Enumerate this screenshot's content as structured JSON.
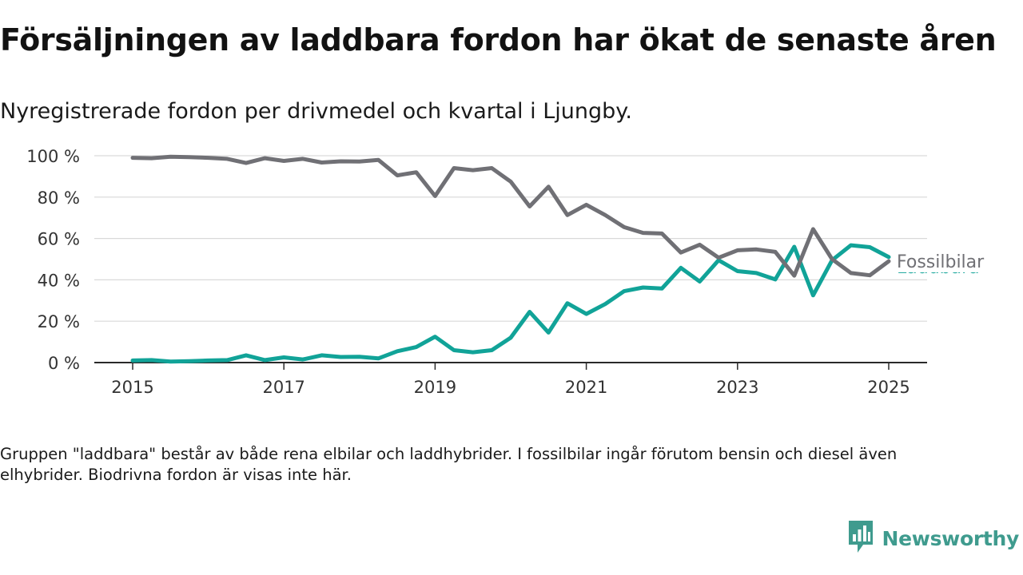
{
  "title": "Försäljningen av laddbara fordon har ökat de senaste åren",
  "subtitle": "Nyregistrerade fordon per drivmedel och kvartal i Ljungby.",
  "footnote": "Gruppen \"laddbara\" består av både rena elbilar och laddhybrider. I fossilbilar ingår förutom bensin och diesel även elhybrider. Biodrivna fordon är visas inte här.",
  "brand": {
    "name": "Newsworthy",
    "icon": "newsworthy-logo-icon",
    "color": "#3f9b8e"
  },
  "chart_data": {
    "type": "line",
    "x_ticks": [
      2015,
      2017,
      2019,
      2021,
      2023,
      2025
    ],
    "x_range": [
      2014.6,
      2025.5
    ],
    "y_ticks": [
      0,
      20,
      40,
      60,
      80,
      100
    ],
    "y_tick_labels": [
      "0 %",
      "20 %",
      "40 %",
      "60 %",
      "80 %",
      "100 %"
    ],
    "ylim": [
      0,
      100
    ],
    "grid": "horizontal",
    "legend": "inline labels at line ends",
    "x": [
      2015.0,
      2015.25,
      2015.5,
      2015.75,
      2016.0,
      2016.25,
      2016.5,
      2016.75,
      2017.0,
      2017.25,
      2017.5,
      2017.75,
      2018.0,
      2018.25,
      2018.5,
      2018.75,
      2019.0,
      2019.25,
      2019.5,
      2019.75,
      2020.0,
      2020.25,
      2020.5,
      2020.75,
      2021.0,
      2021.25,
      2021.5,
      2021.75,
      2022.0,
      2022.25,
      2022.5,
      2022.75,
      2023.0,
      2023.25,
      2023.5,
      2023.75,
      2024.0,
      2024.25,
      2024.5,
      2024.75,
      2025.0
    ],
    "series": [
      {
        "name": "Fossilbilar",
        "color": "#707075",
        "values": [
          99,
          98.8,
          99.5,
          99.3,
          99,
          98.5,
          96.5,
          98.8,
          97.5,
          98.5,
          96.7,
          97.3,
          97.2,
          98,
          90.5,
          92,
          80.5,
          94,
          93,
          94,
          87.5,
          75.5,
          85,
          71.3,
          76.3,
          71.3,
          65.5,
          62.7,
          62.4,
          53.2,
          57,
          50.7,
          54.3,
          54.7,
          53.5,
          42,
          64.5,
          50,
          43.3,
          42.2,
          49
        ]
      },
      {
        "name": "Laddbara",
        "color": "#11a398",
        "values": [
          1,
          1.2,
          0.5,
          0.7,
          1,
          1.2,
          3.5,
          1.2,
          2.5,
          1.5,
          3.5,
          2.7,
          2.8,
          2,
          5.5,
          7.5,
          12.5,
          6,
          5,
          6,
          12,
          24.5,
          14.5,
          28.7,
          23.5,
          28.3,
          34.5,
          36.3,
          35.8,
          45.8,
          39.2,
          49.5,
          44.2,
          43.3,
          40.2,
          56,
          32.5,
          49.5,
          56.7,
          55.8,
          51
        ]
      }
    ]
  }
}
